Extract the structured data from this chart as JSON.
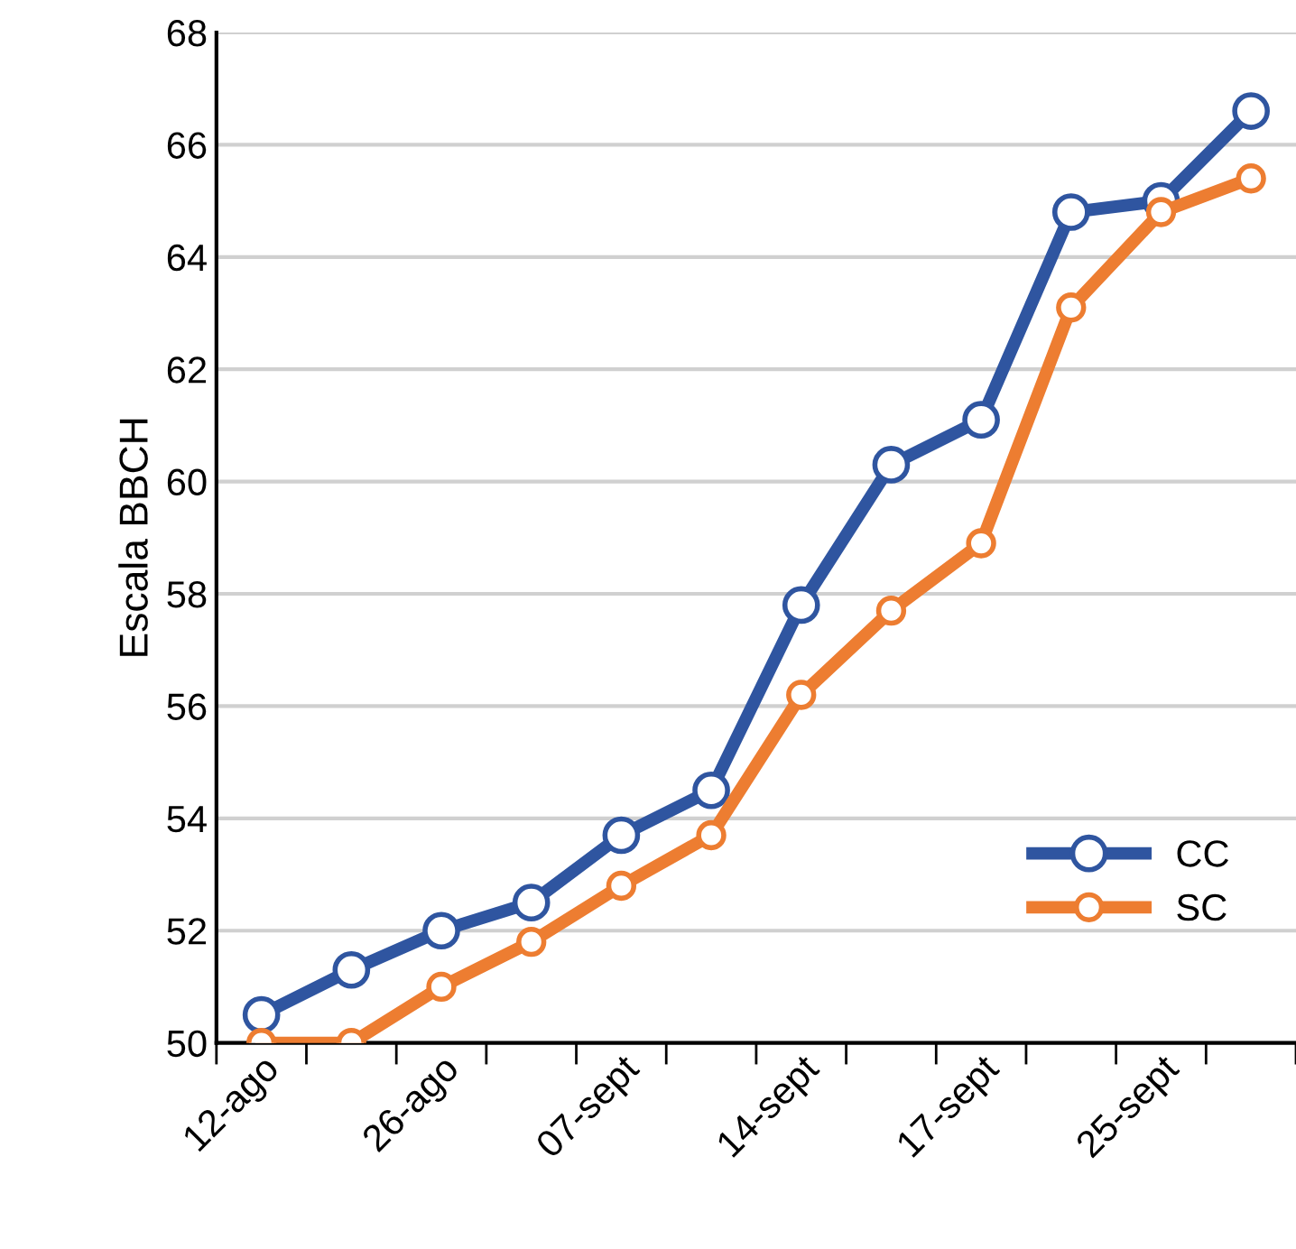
{
  "chart_data": {
    "type": "line",
    "ylabel": "Escala BBCH",
    "categories": [
      "12-ago",
      null,
      "26-ago",
      null,
      "07-sept",
      null,
      "14-sept",
      null,
      "17-sept",
      null,
      "25-sept",
      null
    ],
    "series": [
      {
        "name": "CC",
        "color": "#2f55a0",
        "values": [
          50.5,
          51.3,
          52.0,
          52.5,
          53.7,
          54.5,
          57.8,
          60.3,
          61.1,
          64.8,
          65.0,
          66.6
        ]
      },
      {
        "name": "SC",
        "color": "#ed7d31",
        "values": [
          50.0,
          50.0,
          51.0,
          51.8,
          52.8,
          53.7,
          56.2,
          57.7,
          58.9,
          63.1,
          64.8,
          65.4
        ]
      }
    ],
    "ylim": [
      50,
      68
    ],
    "yticks": [
      50,
      52,
      54,
      56,
      58,
      60,
      62,
      64,
      66,
      68
    ],
    "grid": "y",
    "legend": "bottom right",
    "marker": "circle",
    "line_style": "solid"
  }
}
